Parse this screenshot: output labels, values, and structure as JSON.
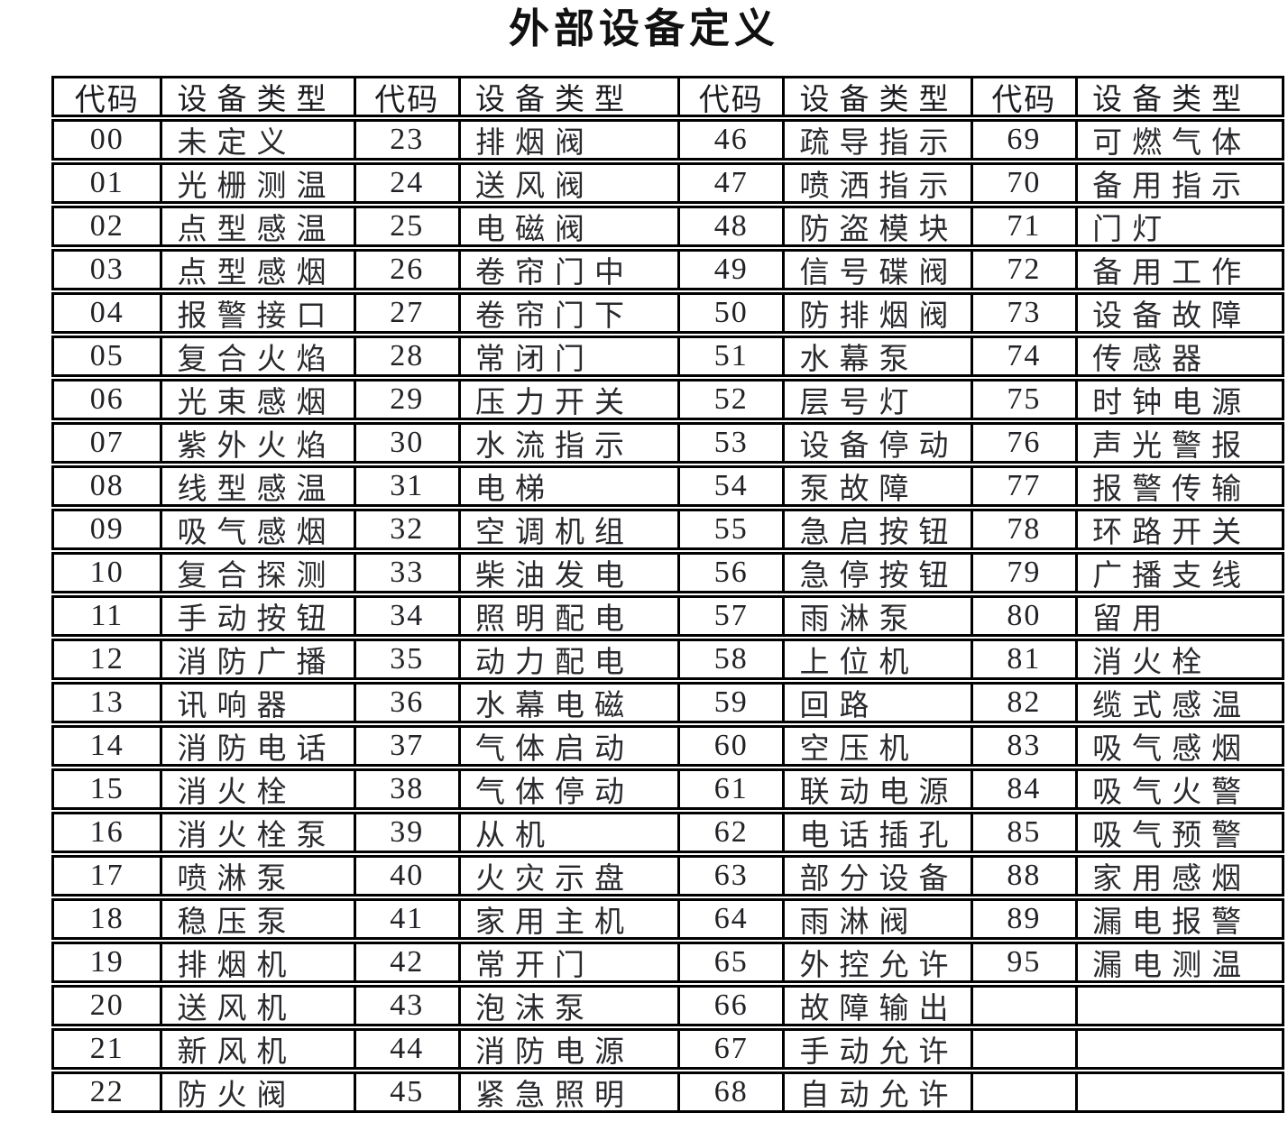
{
  "page_title": "外部设备定义",
  "table": {
    "header": {
      "code_label": "代码",
      "type_label": "设备类型"
    },
    "columns": [
      {
        "cells": [
          {
            "code": "00",
            "type": "未定义"
          },
          {
            "code": "01",
            "type": "光栅测温"
          },
          {
            "code": "02",
            "type": "点型感温"
          },
          {
            "code": "03",
            "type": "点型感烟"
          },
          {
            "code": "04",
            "type": "报警接口"
          },
          {
            "code": "05",
            "type": "复合火焰"
          },
          {
            "code": "06",
            "type": "光束感烟"
          },
          {
            "code": "07",
            "type": "紫外火焰"
          },
          {
            "code": "08",
            "type": "线型感温"
          },
          {
            "code": "09",
            "type": "吸气感烟"
          },
          {
            "code": "10",
            "type": "复合探测"
          },
          {
            "code": "11",
            "type": "手动按钮"
          },
          {
            "code": "12",
            "type": "消防广播"
          },
          {
            "code": "13",
            "type": "讯响器"
          },
          {
            "code": "14",
            "type": "消防电话"
          },
          {
            "code": "15",
            "type": "消火栓"
          },
          {
            "code": "16",
            "type": "消火栓泵"
          },
          {
            "code": "17",
            "type": "喷淋泵"
          },
          {
            "code": "18",
            "type": "稳压泵"
          },
          {
            "code": "19",
            "type": "排烟机"
          },
          {
            "code": "20",
            "type": "送风机"
          },
          {
            "code": "21",
            "type": "新风机"
          },
          {
            "code": "22",
            "type": "防火阀"
          }
        ]
      },
      {
        "cells": [
          {
            "code": "23",
            "type": "排烟阀"
          },
          {
            "code": "24",
            "type": "送风阀"
          },
          {
            "code": "25",
            "type": "电磁阀"
          },
          {
            "code": "26",
            "type": "卷帘门中"
          },
          {
            "code": "27",
            "type": "卷帘门下"
          },
          {
            "code": "28",
            "type": "常闭门"
          },
          {
            "code": "29",
            "type": "压力开关"
          },
          {
            "code": "30",
            "type": "水流指示"
          },
          {
            "code": "31",
            "type": "电梯"
          },
          {
            "code": "32",
            "type": "空调机组"
          },
          {
            "code": "33",
            "type": "柴油发电"
          },
          {
            "code": "34",
            "type": "照明配电"
          },
          {
            "code": "35",
            "type": "动力配电"
          },
          {
            "code": "36",
            "type": "水幕电磁"
          },
          {
            "code": "37",
            "type": "气体启动"
          },
          {
            "code": "38",
            "type": "气体停动"
          },
          {
            "code": "39",
            "type": "从机"
          },
          {
            "code": "40",
            "type": "火灾示盘"
          },
          {
            "code": "41",
            "type": "家用主机"
          },
          {
            "code": "42",
            "type": "常开门"
          },
          {
            "code": "43",
            "type": "泡沫泵"
          },
          {
            "code": "44",
            "type": "消防电源"
          },
          {
            "code": "45",
            "type": "紧急照明"
          }
        ]
      },
      {
        "cells": [
          {
            "code": "46",
            "type": "疏导指示"
          },
          {
            "code": "47",
            "type": "喷洒指示"
          },
          {
            "code": "48",
            "type": "防盗模块"
          },
          {
            "code": "49",
            "type": "信号碟阀"
          },
          {
            "code": "50",
            "type": "防排烟阀"
          },
          {
            "code": "51",
            "type": "水幕泵"
          },
          {
            "code": "52",
            "type": "层号灯"
          },
          {
            "code": "53",
            "type": "设备停动"
          },
          {
            "code": "54",
            "type": "泵故障"
          },
          {
            "code": "55",
            "type": "急启按钮"
          },
          {
            "code": "56",
            "type": "急停按钮"
          },
          {
            "code": "57",
            "type": "雨淋泵"
          },
          {
            "code": "58",
            "type": "上位机"
          },
          {
            "code": "59",
            "type": "回路"
          },
          {
            "code": "60",
            "type": "空压机"
          },
          {
            "code": "61",
            "type": "联动电源"
          },
          {
            "code": "62",
            "type": "电话插孔"
          },
          {
            "code": "63",
            "type": "部分设备"
          },
          {
            "code": "64",
            "type": "雨淋阀"
          },
          {
            "code": "65",
            "type": "外控允许"
          },
          {
            "code": "66",
            "type": "故障输出"
          },
          {
            "code": "67",
            "type": "手动允许"
          },
          {
            "code": "68",
            "type": "自动允许"
          }
        ]
      },
      {
        "cells": [
          {
            "code": "69",
            "type": "可燃气体"
          },
          {
            "code": "70",
            "type": "备用指示"
          },
          {
            "code": "71",
            "type": "门灯"
          },
          {
            "code": "72",
            "type": "备用工作"
          },
          {
            "code": "73",
            "type": "设备故障"
          },
          {
            "code": "74",
            "type": "传感器"
          },
          {
            "code": "75",
            "type": "时钟电源"
          },
          {
            "code": "76",
            "type": "声光警报"
          },
          {
            "code": "77",
            "type": "报警传输"
          },
          {
            "code": "78",
            "type": "环路开关"
          },
          {
            "code": "79",
            "type": "广播支线"
          },
          {
            "code": "80",
            "type": "留用"
          },
          {
            "code": "81",
            "type": "消火栓"
          },
          {
            "code": "82",
            "type": "缆式感温"
          },
          {
            "code": "83",
            "type": "吸气感烟"
          },
          {
            "code": "84",
            "type": "吸气火警"
          },
          {
            "code": "85",
            "type": "吸气预警"
          },
          {
            "code": "88",
            "type": "家用感烟"
          },
          {
            "code": "89",
            "type": "漏电报警"
          },
          {
            "code": "95",
            "type": "漏电测温"
          }
        ]
      }
    ]
  }
}
